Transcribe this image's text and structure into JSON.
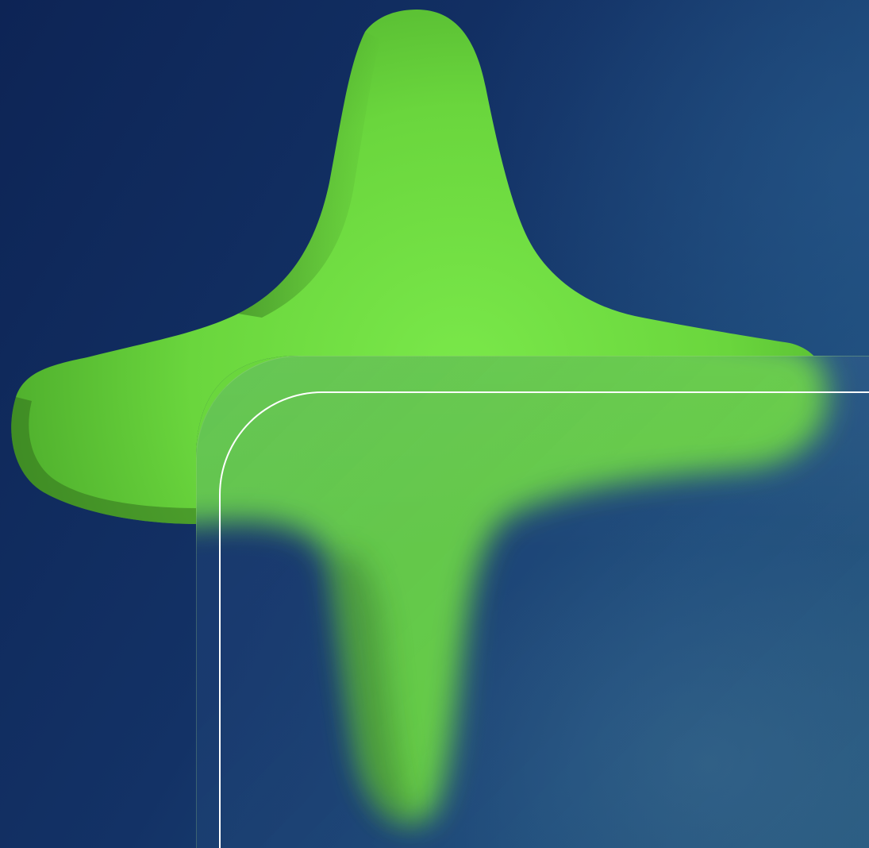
{
  "scene": {
    "background_colors": [
      "#0d2455",
      "#133266",
      "#1d4a7a",
      "#27587f"
    ],
    "shape_color": "#6bdc3f",
    "shape_shadow_color": "#2f6a1c",
    "outline_color": "#ffffff"
  }
}
